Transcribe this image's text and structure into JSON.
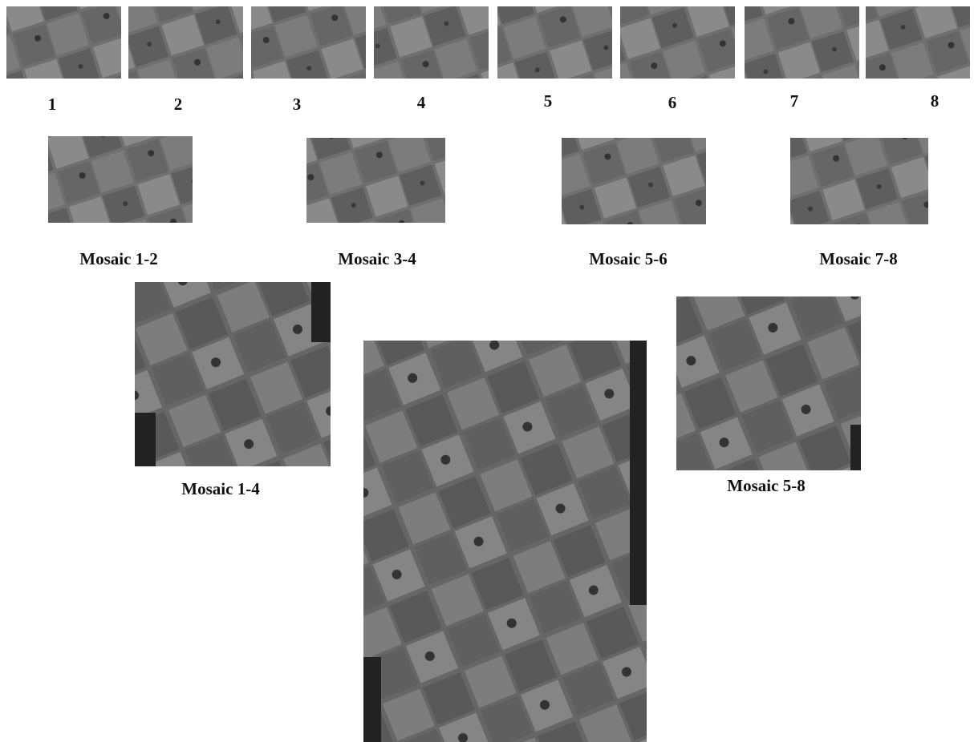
{
  "frames": [
    {
      "label": "1"
    },
    {
      "label": "2"
    },
    {
      "label": "3"
    },
    {
      "label": "4"
    },
    {
      "label": "5"
    },
    {
      "label": "6"
    },
    {
      "label": "7"
    },
    {
      "label": "8"
    }
  ],
  "pair_mosaics": [
    {
      "label": "Mosaic 1-2"
    },
    {
      "label": "Mosaic 3-4"
    },
    {
      "label": "Mosaic 5-6"
    },
    {
      "label": "Mosaic 7-8"
    }
  ],
  "quad_mosaics": [
    {
      "label": "Mosaic 1-4"
    },
    {
      "label": "Mosaic 5-8"
    }
  ]
}
